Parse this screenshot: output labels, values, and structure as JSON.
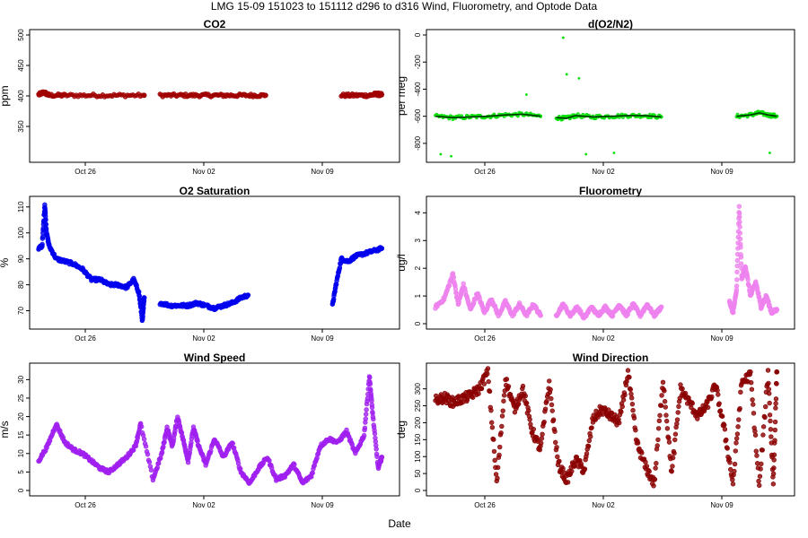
{
  "figure": {
    "title": "LMG   15-09     151023 to 151112     d296 to d316   Wind, Fluorometry, and Optode Data",
    "xlabel": "Date"
  },
  "chart_data": [
    {
      "type": "scatter",
      "title": "CO2",
      "ylabel": "ppm",
      "ylim": [
        300,
        500
      ],
      "yticks": [
        "350",
        "400",
        "450",
        "500"
      ],
      "x_ticks": [
        "Oct 26",
        "Nov 02",
        "Nov 09"
      ],
      "xlim_day": [
        296,
        316
      ],
      "color": "#a00000",
      "series": [
        {
          "x": [
            296.0,
            296.3,
            296.6,
            297.5,
            299.0,
            300.5,
            302.0
          ],
          "y": [
            402,
            406,
            401,
            401,
            401,
            401,
            401
          ]
        },
        {
          "x": [
            302.9,
            304.0,
            305.0,
            306.0,
            307.0,
            308.0,
            308.9
          ],
          "y": [
            401,
            401,
            401,
            401,
            401,
            401,
            401
          ]
        },
        {
          "x": [
            313.2,
            314.0,
            314.8,
            315.2,
            315.5
          ],
          "y": [
            401,
            401,
            401,
            403,
            402
          ]
        }
      ]
    },
    {
      "type": "scatter",
      "title": "d(O2/N2)",
      "ylabel": "per meg",
      "ylim": [
        -900,
        0
      ],
      "yticks": [
        "0",
        "-200",
        "-400",
        "-600",
        "-800"
      ],
      "x_ticks": [
        "Oct 26",
        "Nov 02",
        "Nov 09"
      ],
      "xlim_day": [
        296,
        316
      ],
      "color": "#00e000",
      "series": [
        {
          "x": [
            296.0,
            297.0,
            298.0,
            299.0,
            300.0,
            301.0,
            302.0
          ],
          "y": [
            -600,
            -610,
            -605,
            -600,
            -590,
            -585,
            -600
          ]
        },
        {
          "x": [
            302.9,
            303.5,
            304.0,
            305.0,
            306.0,
            307.0,
            308.0,
            308.9
          ],
          "y": [
            -610,
            -615,
            -595,
            -605,
            -600,
            -595,
            -595,
            -605
          ]
        },
        {
          "x": [
            313.2,
            314.0,
            314.5,
            315.0,
            315.5
          ],
          "y": [
            -600,
            -590,
            -575,
            -590,
            -600
          ]
        }
      ],
      "outliers": [
        {
          "x": 296.3,
          "y": -880
        },
        {
          "x": 296.9,
          "y": -895
        },
        {
          "x": 301.2,
          "y": -440
        },
        {
          "x": 303.3,
          "y": -20
        },
        {
          "x": 303.5,
          "y": -290
        },
        {
          "x": 304.2,
          "y": -320
        },
        {
          "x": 304.6,
          "y": -880
        },
        {
          "x": 306.2,
          "y": -870
        },
        {
          "x": 315.1,
          "y": -870
        }
      ]
    },
    {
      "type": "scatter",
      "title": "O2 Saturation",
      "ylabel": "%",
      "ylim": [
        65,
        112
      ],
      "yticks": [
        "70",
        "80",
        "90",
        "100",
        "110"
      ],
      "x_ticks": [
        "Oct 26",
        "Nov 02",
        "Nov 09"
      ],
      "xlim_day": [
        296,
        316
      ],
      "color": "#0000ee",
      "series": [
        {
          "x": [
            296.0,
            296.2,
            296.35,
            296.45,
            296.6,
            297.0,
            297.5,
            298.0,
            298.5,
            299.0,
            299.5,
            300.0,
            300.5,
            301.0,
            301.4,
            301.7,
            301.9,
            302.0
          ],
          "y": [
            94,
            95,
            111,
            100,
            95,
            90,
            89,
            88,
            86,
            82,
            82,
            80,
            80,
            79,
            82,
            77,
            66,
            75
          ]
        },
        {
          "x": [
            302.9,
            303.5,
            304.0,
            304.5,
            305.0,
            305.5,
            306.0,
            306.5,
            307.0,
            307.5,
            307.9
          ],
          "y": [
            73,
            72,
            72,
            72,
            73,
            72,
            71,
            72,
            73,
            75,
            76
          ]
        },
        {
          "x": [
            312.7,
            312.9,
            313.2,
            313.6,
            314.0,
            314.5,
            315.0,
            315.5
          ],
          "y": [
            72,
            80,
            90,
            89,
            91,
            92,
            93,
            94
          ]
        }
      ]
    },
    {
      "type": "scatter",
      "title": "Fluorometry",
      "ylabel": "ug/l",
      "ylim": [
        0,
        4.4
      ],
      "yticks": [
        "0",
        "1",
        "2",
        "3",
        "4"
      ],
      "x_ticks": [
        "Oct 26",
        "Nov 02",
        "Nov 09"
      ],
      "xlim_day": [
        296,
        316
      ],
      "color": "#ee82ee",
      "series": [
        {
          "x": [
            296.0,
            296.5,
            297.0,
            297.3,
            297.6,
            298.0,
            298.4,
            298.8,
            299.2,
            299.6,
            300.0,
            300.4,
            300.8,
            301.2,
            301.6,
            302.0
          ],
          "y": [
            0.6,
            0.9,
            1.8,
            0.7,
            1.4,
            0.5,
            1.1,
            0.4,
            0.9,
            0.3,
            0.8,
            0.3,
            0.7,
            0.3,
            0.7,
            0.3
          ]
        },
        {
          "x": [
            302.9,
            303.3,
            303.7,
            304.1,
            304.5,
            304.9,
            305.3,
            305.7,
            306.1,
            306.5,
            306.9,
            307.3,
            307.7,
            308.1,
            308.5,
            308.9
          ],
          "y": [
            0.3,
            0.7,
            0.3,
            0.6,
            0.2,
            0.6,
            0.3,
            0.6,
            0.3,
            0.7,
            0.3,
            0.7,
            0.3,
            0.7,
            0.3,
            0.6
          ]
        },
        {
          "x": [
            312.8,
            313.0,
            313.2,
            313.35,
            313.5,
            313.7,
            314.0,
            314.3,
            314.6,
            314.9,
            315.2,
            315.5
          ],
          "y": [
            0.8,
            0.4,
            1.2,
            4.2,
            1.6,
            2.1,
            1.0,
            1.5,
            0.6,
            1.0,
            0.4,
            0.5
          ]
        }
      ]
    },
    {
      "type": "scatter",
      "title": "Wind Speed",
      "ylabel": "m/s",
      "ylim": [
        0,
        33
      ],
      "yticks": [
        "0",
        "5",
        "10",
        "15",
        "20",
        "25",
        "30"
      ],
      "x_ticks": [
        "Oct 26",
        "Nov 02",
        "Nov 09"
      ],
      "xlim_day": [
        296,
        316
      ],
      "color": "#a020f0",
      "series": [
        {
          "x": [
            296.0,
            296.5,
            297.0,
            297.5,
            298.0,
            298.5,
            299.0,
            299.5,
            300.0,
            300.5,
            301.0,
            301.5,
            301.8,
            302.5,
            303.0,
            303.3,
            303.6,
            303.9,
            304.2,
            304.5,
            304.8,
            305.1,
            305.5,
            306.0,
            306.5,
            307.0,
            307.5,
            308.0,
            308.5,
            309.0,
            309.5,
            310.0,
            310.5,
            311.0,
            311.5,
            312.0,
            312.5,
            313.0,
            313.5,
            314.0,
            314.5,
            314.8,
            315.0,
            315.3,
            315.5
          ],
          "y": [
            8,
            12,
            18,
            13,
            11,
            10,
            8,
            6,
            5,
            7,
            9,
            12,
            18,
            3,
            10,
            17,
            12,
            20,
            14,
            8,
            17,
            12,
            7,
            14,
            9,
            13,
            5,
            2,
            6,
            9,
            3,
            4,
            7,
            2,
            4,
            12,
            14,
            13,
            16,
            10,
            15,
            31,
            20,
            6,
            9
          ]
        }
      ]
    },
    {
      "type": "scatter",
      "title": "Wind Direction",
      "ylabel": "deg",
      "ylim": [
        0,
        360
      ],
      "yticks": [
        "0",
        "50",
        "100",
        "150",
        "200",
        "250",
        "300"
      ],
      "x_ticks": [
        "Oct 26",
        "Nov 02",
        "Nov 09"
      ],
      "xlim_day": [
        296,
        316
      ],
      "color": "#8b0000",
      "series": [
        {
          "x": [
            296.0,
            296.5,
            297.0,
            297.5,
            298.0,
            298.5,
            299.0,
            299.5,
            300.0,
            300.5,
            301.0,
            301.5,
            302.0,
            302.5,
            303.0,
            303.5,
            304.0,
            304.5,
            305.0,
            305.5,
            306.0,
            306.5,
            307.0,
            307.5,
            308.0,
            308.5,
            309.0,
            309.5,
            310.0,
            310.5,
            311.0,
            311.5,
            312.0,
            312.5,
            313.0,
            313.5,
            314.0,
            314.5,
            315.0,
            315.3,
            315.5
          ],
          "y": [
            265,
            275,
            260,
            270,
            280,
            300,
            350,
            20,
            330,
            240,
            300,
            180,
            120,
            320,
            80,
            30,
            90,
            60,
            210,
            240,
            220,
            200,
            350,
            140,
            70,
            20,
            330,
            50,
            300,
            260,
            220,
            250,
            310,
            180,
            20,
            320,
            340,
            10,
            350,
            20,
            350
          ]
        }
      ]
    }
  ]
}
